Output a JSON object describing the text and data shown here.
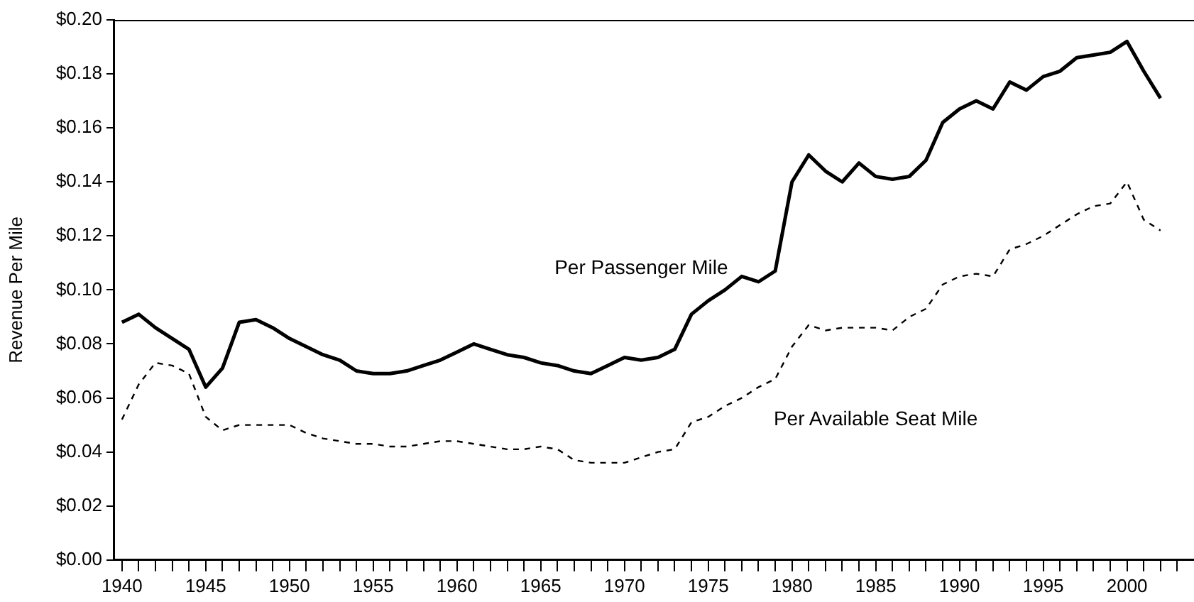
{
  "chart_data": {
    "type": "line",
    "ylabel": "Revenue Per Mile",
    "xlim": [
      1939.5,
      2004
    ],
    "xticks": [
      1940,
      {
        "value": 1941,
        "label": null
      },
      {
        "value": 1942,
        "label": null
      },
      {
        "value": 1943,
        "label": null
      },
      {
        "value": 1944,
        "label": null
      },
      1945,
      {
        "value": 1946,
        "label": null
      },
      {
        "value": 1947,
        "label": null
      },
      {
        "value": 1948,
        "label": null
      },
      {
        "value": 1949,
        "label": null
      },
      1950,
      {
        "value": 1951,
        "label": null
      },
      {
        "value": 1952,
        "label": null
      },
      {
        "value": 1953,
        "label": null
      },
      {
        "value": 1954,
        "label": null
      },
      1955,
      {
        "value": 1956,
        "label": null
      },
      {
        "value": 1957,
        "label": null
      },
      {
        "value": 1958,
        "label": null
      },
      {
        "value": 1959,
        "label": null
      },
      1960,
      {
        "value": 1961,
        "label": null
      },
      {
        "value": 1962,
        "label": null
      },
      {
        "value": 1963,
        "label": null
      },
      {
        "value": 1964,
        "label": null
      },
      1965,
      {
        "value": 1966,
        "label": null
      },
      {
        "value": 1967,
        "label": null
      },
      {
        "value": 1968,
        "label": null
      },
      {
        "value": 1969,
        "label": null
      },
      1970,
      {
        "value": 1971,
        "label": null
      },
      {
        "value": 1972,
        "label": null
      },
      {
        "value": 1973,
        "label": null
      },
      {
        "value": 1974,
        "label": null
      },
      1975,
      {
        "value": 1976,
        "label": null
      },
      {
        "value": 1977,
        "label": null
      },
      {
        "value": 1978,
        "label": null
      },
      {
        "value": 1979,
        "label": null
      },
      1980,
      {
        "value": 1981,
        "label": null
      },
      {
        "value": 1982,
        "label": null
      },
      {
        "value": 1983,
        "label": null
      },
      {
        "value": 1984,
        "label": null
      },
      1985,
      {
        "value": 1986,
        "label": null
      },
      {
        "value": 1987,
        "label": null
      },
      {
        "value": 1988,
        "label": null
      },
      {
        "value": 1989,
        "label": null
      },
      1990,
      {
        "value": 1991,
        "label": null
      },
      {
        "value": 1992,
        "label": null
      },
      {
        "value": 1993,
        "label": null
      },
      {
        "value": 1994,
        "label": null
      },
      1995,
      {
        "value": 1996,
        "label": null
      },
      {
        "value": 1997,
        "label": null
      },
      {
        "value": 1998,
        "label": null
      },
      {
        "value": 1999,
        "label": null
      },
      2000,
      {
        "value": 2001,
        "label": null
      },
      {
        "value": 2002,
        "label": null
      },
      {
        "value": 2003,
        "label": null
      }
    ],
    "ylim": [
      0,
      0.2
    ],
    "yticks": [
      {
        "value": 0,
        "label": "$0.00"
      },
      {
        "value": 0.02,
        "label": "$0.02"
      },
      {
        "value": 0.04,
        "label": "$0.04"
      },
      {
        "value": 0.06,
        "label": "$0.06"
      },
      {
        "value": 0.08,
        "label": "$0.08"
      },
      {
        "value": 0.1,
        "label": "$0.10"
      },
      {
        "value": 0.12,
        "label": "$0.12"
      },
      {
        "value": 0.14,
        "label": "$0.14"
      },
      {
        "value": 0.16,
        "label": "$0.16"
      },
      {
        "value": 0.18,
        "label": "$0.18"
      },
      {
        "value": 0.2,
        "label": "$0.20"
      }
    ],
    "grid": false,
    "legend": false,
    "marker": "none",
    "x": [
      1940,
      1941,
      1942,
      1943,
      1944,
      1945,
      1946,
      1947,
      1948,
      1949,
      1950,
      1951,
      1952,
      1953,
      1954,
      1955,
      1956,
      1957,
      1958,
      1959,
      1960,
      1961,
      1962,
      1963,
      1964,
      1965,
      1966,
      1967,
      1968,
      1969,
      1970,
      1971,
      1972,
      1973,
      1974,
      1975,
      1976,
      1977,
      1978,
      1979,
      1980,
      1981,
      1982,
      1983,
      1984,
      1985,
      1986,
      1987,
      1988,
      1989,
      1990,
      1991,
      1992,
      1993,
      1994,
      1995,
      1996,
      1997,
      1998,
      1999,
      2000,
      2001,
      2002
    ],
    "series": [
      {
        "name": "Per Passenger Mile",
        "color": "#000000",
        "line_style": "solid",
        "values": [
          0.088,
          0.091,
          0.086,
          0.082,
          0.078,
          0.064,
          0.071,
          0.088,
          0.089,
          0.086,
          0.082,
          0.079,
          0.076,
          0.074,
          0.07,
          0.069,
          0.069,
          0.07,
          0.072,
          0.074,
          0.077,
          0.08,
          0.078,
          0.076,
          0.075,
          0.073,
          0.072,
          0.07,
          0.069,
          0.072,
          0.075,
          0.074,
          0.075,
          0.078,
          0.091,
          0.096,
          0.1,
          0.105,
          0.103,
          0.107,
          0.14,
          0.15,
          0.144,
          0.14,
          0.147,
          0.142,
          0.141,
          0.142,
          0.148,
          0.162,
          0.167,
          0.17,
          0.167,
          0.177,
          0.174,
          0.179,
          0.181,
          0.186,
          0.187,
          0.188,
          0.192,
          0.181,
          0.171
        ]
      },
      {
        "name": "Per Available Seat Mile",
        "color": "#000000",
        "line_style": "dashed",
        "values": [
          0.052,
          0.065,
          0.073,
          0.072,
          0.069,
          0.053,
          0.048,
          0.05,
          0.05,
          0.05,
          0.05,
          0.047,
          0.045,
          0.044,
          0.043,
          0.043,
          0.042,
          0.042,
          0.043,
          0.044,
          0.044,
          0.043,
          0.042,
          0.041,
          0.041,
          0.042,
          0.041,
          0.037,
          0.036,
          0.036,
          0.036,
          0.038,
          0.04,
          0.041,
          0.051,
          0.053,
          0.057,
          0.06,
          0.064,
          0.067,
          0.079,
          0.087,
          0.085,
          0.086,
          0.086,
          0.086,
          0.085,
          0.09,
          0.093,
          0.102,
          0.105,
          0.106,
          0.105,
          0.115,
          0.117,
          0.12,
          0.124,
          0.128,
          0.131,
          0.132,
          0.14,
          0.126,
          0.122
        ]
      }
    ]
  }
}
